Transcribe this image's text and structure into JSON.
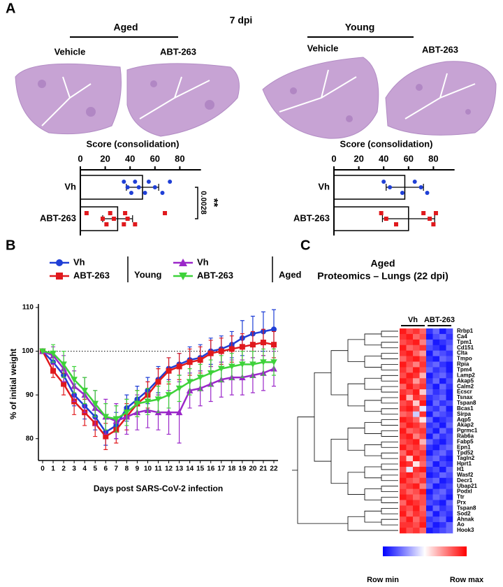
{
  "figure": {
    "panel_a": {
      "label": "A",
      "title": "7 dpi",
      "groups": [
        "Aged",
        "Young"
      ],
      "treatments": [
        "Vehicle",
        "ABT-263",
        "Vehicle",
        "ABT-263"
      ]
    },
    "panel_b": {
      "label": "B"
    },
    "panel_c": {
      "label": "C"
    }
  },
  "chart_data": [
    {
      "type": "bar",
      "orientation": "horizontal",
      "title": "Score (consolidation)",
      "categories": [
        "Vh",
        "ABT-263"
      ],
      "values": [
        50,
        30
      ],
      "errors": [
        13,
        12
      ],
      "points": [
        [
          35,
          38,
          41,
          44,
          47,
          52,
          55,
          60,
          66,
          72
        ],
        [
          5,
          18,
          21,
          24,
          27,
          35,
          36,
          38,
          44,
          68
        ]
      ],
      "point_colors": [
        "#1f3fd6",
        "#e0191d"
      ],
      "point_markers": [
        "circle",
        "square"
      ],
      "xlim": [
        0,
        100
      ],
      "xticks": [
        0,
        20,
        40,
        60,
        80
      ],
      "annotation": {
        "p_value": "0.0028",
        "significance": "**"
      }
    },
    {
      "type": "bar",
      "orientation": "horizontal",
      "title": "Score (consolidation)",
      "categories": [
        "Vh",
        "ABT-263"
      ],
      "values": [
        57,
        60
      ],
      "errors": [
        15,
        21
      ],
      "points": [
        [
          40,
          45,
          55,
          65,
          70,
          75
        ],
        [
          38,
          42,
          50,
          72,
          77,
          80,
          82
        ]
      ],
      "point_colors": [
        "#1f3fd6",
        "#e0191d"
      ],
      "point_markers": [
        "circle",
        "square"
      ],
      "xlim": [
        0,
        100
      ],
      "xticks": [
        0,
        20,
        40,
        60,
        80
      ]
    },
    {
      "type": "line",
      "xlabel": "Days post SARS-CoV-2 infection",
      "ylabel": "% of initial weight",
      "x": [
        0,
        1,
        2,
        3,
        4,
        5,
        6,
        7,
        8,
        9,
        10,
        11,
        12,
        13,
        14,
        15,
        16,
        17,
        18,
        19,
        20,
        21,
        22
      ],
      "xlim": [
        -0.4,
        22.4
      ],
      "xticks": [
        0,
        1,
        2,
        3,
        4,
        5,
        6,
        7,
        8,
        9,
        10,
        11,
        12,
        13,
        14,
        15,
        16,
        17,
        18,
        19,
        20,
        21,
        22
      ],
      "ylim": [
        75,
        110
      ],
      "yticks": [
        80,
        90,
        100,
        110
      ],
      "reference_line": 100,
      "legend_groups": [
        "Young",
        "Aged"
      ],
      "series": [
        {
          "name": "Vh",
          "color": "#1f3fd6",
          "marker": "circle",
          "values": [
            100,
            97.5,
            94.5,
            90,
            87.5,
            85,
            81.5,
            83,
            87,
            89,
            91,
            93.5,
            96,
            97,
            98,
            98.5,
            100,
            100.5,
            101.5,
            103,
            104,
            104.5,
            105
          ],
          "errors": [
            0,
            1.5,
            2,
            2.5,
            3,
            3,
            3,
            3,
            3,
            3,
            3,
            3,
            2.5,
            2.5,
            3,
            3,
            3,
            3,
            3,
            4,
            4,
            4.5,
            4.5
          ]
        },
        {
          "name": "ABT-263",
          "color": "#e0191d",
          "marker": "square",
          "values": [
            100,
            95.5,
            92.5,
            88.5,
            86,
            83.5,
            80.5,
            82,
            85,
            88,
            90,
            93,
            95.5,
            96.5,
            97.5,
            98,
            99.5,
            100,
            100.5,
            101,
            101.5,
            102,
            101.5
          ],
          "errors": [
            0,
            1.5,
            2.5,
            3,
            3,
            3,
            3,
            3,
            3,
            3,
            3,
            3,
            3,
            3,
            3,
            3,
            3,
            3,
            3,
            3,
            3,
            3,
            3
          ]
        },
        {
          "name": "Vh",
          "color": "#9b27c9",
          "marker": "triangle-up",
          "values": [
            100,
            99,
            96,
            92,
            90,
            87,
            85,
            84,
            85,
            86,
            86.5,
            86,
            86,
            86,
            91,
            91.5,
            92.5,
            93.5,
            94,
            94,
            94.5,
            95,
            96
          ],
          "errors": [
            0,
            2,
            3,
            3.5,
            4,
            4,
            4,
            4,
            4,
            4,
            4,
            4,
            5,
            7,
            4,
            4,
            4,
            4,
            4,
            4,
            4,
            4,
            4
          ]
        },
        {
          "name": "ABT-263",
          "color": "#3ed23a",
          "marker": "triangle-down",
          "values": [
            100,
            99.5,
            97,
            93.5,
            91,
            88,
            85,
            84.5,
            86,
            88,
            88.5,
            89,
            90,
            91.5,
            93,
            94,
            95,
            96,
            96.5,
            97,
            97,
            97.5,
            97.5
          ],
          "errors": [
            0,
            2,
            3,
            3,
            3,
            3,
            3,
            3,
            3,
            3,
            3,
            3,
            3,
            3,
            3,
            3,
            3,
            3,
            3,
            3,
            3,
            3,
            3
          ]
        }
      ]
    },
    {
      "type": "heatmap",
      "title": "Aged",
      "subtitle": "Proteomics – Lungs  (22 dpi)",
      "column_groups": [
        "Vh",
        "ABT-263"
      ],
      "colorbar_labels": [
        "Row min",
        "Row max"
      ],
      "clim": [
        -1,
        1
      ],
      "rows": [
        "Rrbp1",
        "Ca4",
        "Tpm1",
        "Cd151",
        "Clta",
        "Tmpo",
        "Rpia",
        "Tpm4",
        "Lamp2",
        "Akap5",
        "Calm2",
        "Ecscr",
        "Tsnax",
        "Tspan8",
        "Bcas1",
        "Sirpa",
        "Aqp5",
        "Akap2",
        "Pgrmc1",
        "Rab6a",
        "Fabp5",
        "Epn1",
        "Tpd52",
        "Tagln2",
        "Hprt1",
        "H1",
        "Wasf2",
        "Decr1",
        "Ubap21",
        "Podxl",
        "Ttr",
        "Prx",
        "Tspan8",
        "Sod2",
        "Ahnak",
        "Ao",
        "Hook3"
      ],
      "values": [
        [
          0.9,
          0.7,
          0.8,
          0.6,
          -0.8,
          -0.6,
          -0.9,
          -0.7
        ],
        [
          0.8,
          0.9,
          0.6,
          0.7,
          -0.9,
          -0.7,
          -0.6,
          -0.8
        ],
        [
          0.7,
          0.8,
          0.9,
          0.5,
          -0.6,
          -0.9,
          -0.8,
          -0.7
        ],
        [
          0.9,
          0.6,
          0.7,
          0.8,
          -0.7,
          -0.8,
          -0.9,
          -0.6
        ],
        [
          0.8,
          0.9,
          0.6,
          0.4,
          -0.9,
          -0.6,
          -0.7,
          -0.8
        ],
        [
          0.6,
          0.8,
          0.9,
          0.7,
          -0.8,
          -0.9,
          -0.6,
          -0.7
        ],
        [
          0.9,
          0.7,
          0.5,
          0.8,
          -0.7,
          -0.6,
          -0.8,
          -0.9
        ],
        [
          0.8,
          0.6,
          0.9,
          0.7,
          -0.6,
          -0.8,
          -0.7,
          -0.9
        ],
        [
          0.7,
          0.9,
          0.8,
          0.3,
          -0.9,
          -0.7,
          -0.6,
          -0.8
        ],
        [
          0.9,
          0.8,
          0.4,
          0.7,
          -0.8,
          -0.6,
          -0.9,
          -0.7
        ],
        [
          0.6,
          0.9,
          0.7,
          0.8,
          -0.7,
          -0.9,
          -0.6,
          -0.8
        ],
        [
          0.8,
          0.7,
          0.9,
          0.2,
          -0.6,
          -0.8,
          -0.7,
          -0.9
        ],
        [
          0.9,
          0.3,
          0.8,
          0.7,
          -0.8,
          -0.7,
          -0.6,
          -0.9
        ],
        [
          0.7,
          0.8,
          0.2,
          0.9,
          -0.9,
          -0.6,
          -0.8,
          -0.7
        ],
        [
          0.8,
          0.9,
          0.7,
          -0.1,
          -0.7,
          -0.8,
          -0.6,
          -0.9
        ],
        [
          0.6,
          0.7,
          -0.2,
          0.8,
          -0.9,
          -0.6,
          -0.7,
          -0.8
        ],
        [
          0.9,
          0.8,
          0.6,
          0.1,
          -0.6,
          -0.9,
          -0.8,
          -0.7
        ],
        [
          0.7,
          0.9,
          0.8,
          0.6,
          -0.8,
          -0.7,
          -0.9,
          -0.6
        ],
        [
          0.9,
          0.6,
          0.7,
          0.8,
          -0.7,
          -0.9,
          -0.6,
          -0.8
        ],
        [
          0.8,
          0.9,
          0.5,
          0.7,
          -0.9,
          -0.6,
          -0.8,
          -0.7
        ],
        [
          0.7,
          0.8,
          0.9,
          0.3,
          -0.6,
          -0.8,
          -0.9,
          -0.7
        ],
        [
          0.9,
          0.7,
          0.8,
          0.6,
          -0.8,
          -0.9,
          -0.7,
          -0.6
        ],
        [
          0.6,
          0.9,
          0.7,
          0.8,
          -0.9,
          -0.7,
          -0.6,
          -0.8
        ],
        [
          0.8,
          0.2,
          0.9,
          0.7,
          -0.7,
          -0.6,
          -0.8,
          -0.9
        ],
        [
          0.9,
          0.8,
          0.1,
          0.6,
          -0.6,
          -0.9,
          -0.7,
          -0.8
        ],
        [
          0.7,
          -0.1,
          0.8,
          0.9,
          -0.8,
          -0.7,
          -0.9,
          -0.6
        ],
        [
          0.8,
          0.9,
          0.7,
          0.6,
          -0.9,
          -0.8,
          -0.6,
          -0.7
        ],
        [
          0.9,
          0.7,
          0.6,
          0.8,
          -0.7,
          -0.6,
          -0.9,
          -0.8
        ],
        [
          0.7,
          0.8,
          0.9,
          0.5,
          -0.6,
          -0.9,
          -0.8,
          -0.7
        ],
        [
          0.8,
          0.6,
          0.7,
          0.9,
          -0.9,
          -0.7,
          -0.6,
          -0.8
        ],
        [
          0.9,
          0.8,
          0.6,
          0.7,
          -0.8,
          -0.6,
          -0.7,
          -0.9
        ],
        [
          0.6,
          0.9,
          0.8,
          0.7,
          -0.7,
          -0.8,
          -0.9,
          -0.6
        ],
        [
          0.8,
          0.7,
          0.9,
          0.6,
          -0.9,
          -0.6,
          -0.8,
          -0.7
        ],
        [
          0.9,
          0.6,
          0.8,
          0.7,
          -0.6,
          -0.9,
          -0.7,
          -0.8
        ],
        [
          0.7,
          0.9,
          0.6,
          0.8,
          -0.8,
          -0.7,
          -0.6,
          -0.9
        ],
        [
          0.8,
          0.8,
          0.7,
          0.9,
          -0.7,
          -0.9,
          -0.8,
          -0.6
        ],
        [
          0.9,
          0.7,
          0.8,
          0.6,
          -0.9,
          -0.8,
          -0.7,
          -0.6
        ]
      ]
    }
  ]
}
